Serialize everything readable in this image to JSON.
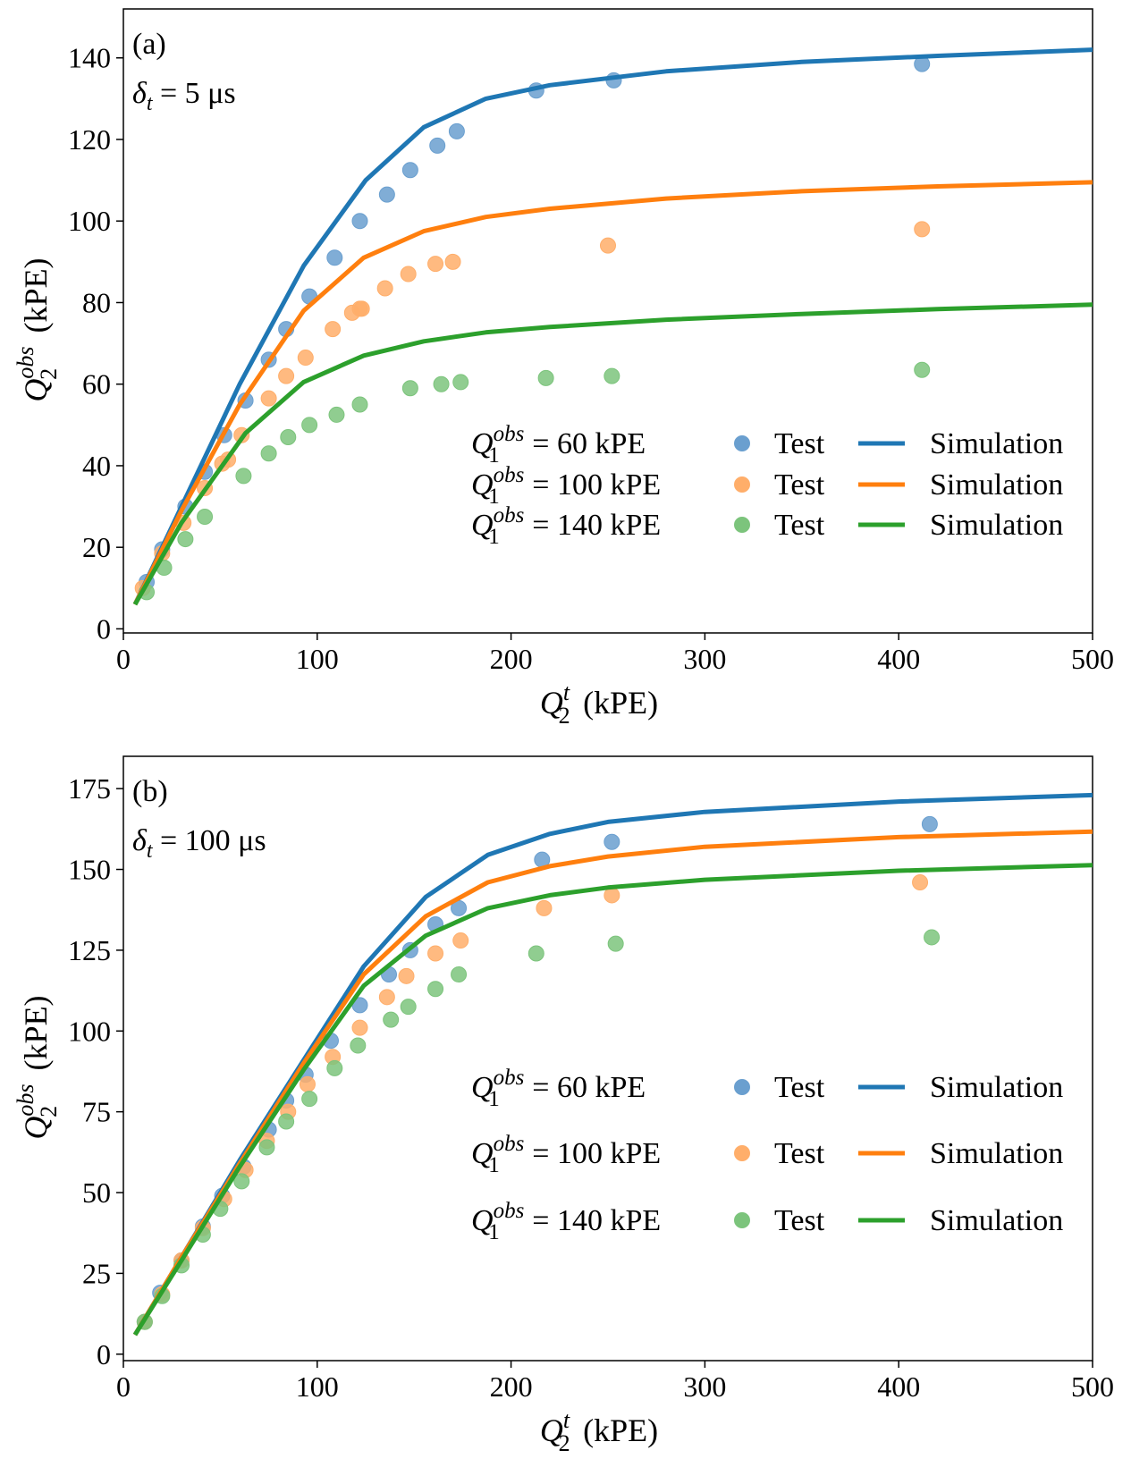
{
  "figure": {
    "colors": {
      "blue": "#1f77b4",
      "orange": "#ff7f0e",
      "green": "#2ca02c",
      "blue_marker": "#6a9fcf",
      "orange_marker": "#ffae6a",
      "green_marker": "#7cc47c"
    }
  },
  "chart_data": [
    {
      "type": "line",
      "panel_label": "(a)",
      "annotation": {
        "symbol": "δ",
        "sub": "t",
        "text": " = 5 μs"
      },
      "xlabel": {
        "base": "Q",
        "sub": "2",
        "sup": "t",
        "unit": " (kPE)"
      },
      "ylabel": {
        "base": "Q",
        "sub": "2",
        "sup": "obs",
        "unit": " (kPE)"
      },
      "xlim": [
        0,
        500
      ],
      "ylim": [
        -1,
        152
      ],
      "xticks": [
        0,
        100,
        200,
        300,
        400,
        500
      ],
      "yticks": [
        0,
        20,
        40,
        60,
        80,
        100,
        120,
        140
      ],
      "grid": false,
      "legend_position": "lower-right",
      "series": [
        {
          "color_key": "blue",
          "legend": {
            "q_base": "Q",
            "q_sub": "1",
            "q_sup": "obs",
            "value": " =  60  kPE",
            "test": "Test",
            "sim": "Simulation"
          },
          "simulation": [
            [
              6,
              6
            ],
            [
              30,
              30
            ],
            [
              60,
              60
            ],
            [
              93,
              89
            ],
            [
              125,
              110
            ],
            [
              155,
              123
            ],
            [
              187,
              130
            ],
            [
              220,
              133.3
            ],
            [
              280,
              136.7
            ],
            [
              350,
              139
            ],
            [
              420,
              140.5
            ],
            [
              500,
              142
            ]
          ],
          "test": [
            [
              12,
              11.5
            ],
            [
              20,
              19.5
            ],
            [
              32,
              30
            ],
            [
              42,
              38.5
            ],
            [
              52,
              47.5
            ],
            [
              63,
              56
            ],
            [
              75,
              66
            ],
            [
              84,
              73.5
            ],
            [
              96,
              81.5
            ],
            [
              109,
              91
            ],
            [
              122,
              100
            ],
            [
              136,
              106.5
            ],
            [
              148,
              112.5
            ],
            [
              162,
              118.5
            ],
            [
              172,
              122
            ],
            [
              213,
              132
            ],
            [
              253,
              134.5
            ],
            [
              412,
              138.5
            ]
          ]
        },
        {
          "color_key": "orange",
          "legend": {
            "q_base": "Q",
            "q_sub": "1",
            "q_sup": "obs",
            "value": " = 100 kPE",
            "test": "Test",
            "sim": "Simulation"
          },
          "simulation": [
            [
              6,
              6
            ],
            [
              30,
              29
            ],
            [
              60,
              55
            ],
            [
              93,
              78
            ],
            [
              124,
              91
            ],
            [
              155,
              97.5
            ],
            [
              187,
              101
            ],
            [
              220,
              103
            ],
            [
              280,
              105.5
            ],
            [
              350,
              107.3
            ],
            [
              420,
              108.5
            ],
            [
              500,
              109.5
            ]
          ],
          "test": [
            [
              10,
              10
            ],
            [
              20,
              18.5
            ],
            [
              31,
              26
            ],
            [
              42,
              34.5
            ],
            [
              51,
              40.5
            ],
            [
              54,
              41.5
            ],
            [
              61,
              47.5
            ],
            [
              75,
              56.5
            ],
            [
              84,
              62
            ],
            [
              94,
              66.5
            ],
            [
              108,
              73.5
            ],
            [
              118,
              77.5
            ],
            [
              122,
              78.5
            ],
            [
              123,
              78.5
            ],
            [
              135,
              83.5
            ],
            [
              147,
              87
            ],
            [
              161,
              89.5
            ],
            [
              170,
              90
            ],
            [
              250,
              94
            ],
            [
              412,
              98
            ]
          ]
        },
        {
          "color_key": "green",
          "legend": {
            "q_base": "Q",
            "q_sub": "1",
            "q_sup": "obs",
            "value": " = 140 kPE",
            "test": "Test",
            "sim": "Simulation"
          },
          "simulation": [
            [
              6,
              6
            ],
            [
              30,
              26
            ],
            [
              63,
              48
            ],
            [
              93,
              60.5
            ],
            [
              124,
              67
            ],
            [
              155,
              70.5
            ],
            [
              187,
              72.7
            ],
            [
              220,
              74
            ],
            [
              280,
              75.8
            ],
            [
              350,
              77.2
            ],
            [
              420,
              78.4
            ],
            [
              500,
              79.5
            ]
          ],
          "test": [
            [
              12,
              9
            ],
            [
              21,
              15
            ],
            [
              32,
              22
            ],
            [
              42,
              27.5
            ],
            [
              62,
              37.5
            ],
            [
              75,
              43
            ],
            [
              85,
              47
            ],
            [
              96,
              50
            ],
            [
              110,
              52.5
            ],
            [
              122,
              55
            ],
            [
              148,
              59
            ],
            [
              164,
              60
            ],
            [
              174,
              60.5
            ],
            [
              218,
              61.5
            ],
            [
              252,
              62
            ],
            [
              412,
              63.5
            ]
          ]
        }
      ]
    },
    {
      "type": "line",
      "panel_label": "(b)",
      "annotation": {
        "symbol": "δ",
        "sub": "t",
        "text": " = 100 μs"
      },
      "xlabel": {
        "base": "Q",
        "sub": "2",
        "sup": "t",
        "unit": " (kPE)"
      },
      "ylabel": {
        "base": "Q",
        "sub": "2",
        "sup": "obs",
        "unit": " (kPE)"
      },
      "xlim": [
        0,
        500
      ],
      "ylim": [
        -2,
        185
      ],
      "xticks": [
        0,
        100,
        200,
        300,
        400,
        500
      ],
      "yticks": [
        0,
        25,
        50,
        75,
        100,
        125,
        150,
        175
      ],
      "grid": false,
      "legend_position": "lower-right",
      "series": [
        {
          "color_key": "blue",
          "legend": {
            "q_base": "Q",
            "q_sub": "1",
            "q_sup": "obs",
            "value": " =  60  kPE",
            "test": "Test",
            "sim": "Simulation"
          },
          "simulation": [
            [
              6,
              6
            ],
            [
              30,
              30
            ],
            [
              60,
              60
            ],
            [
              93,
              91
            ],
            [
              124,
              120
            ],
            [
              156,
              141.5
            ],
            [
              188,
              154.5
            ],
            [
              220,
              161
            ],
            [
              250,
              164.7
            ],
            [
              300,
              167.8
            ],
            [
              400,
              171
            ],
            [
              500,
              173
            ]
          ],
          "test": [
            [
              11,
              10
            ],
            [
              19,
              19
            ],
            [
              30,
              29
            ],
            [
              41,
              39.5
            ],
            [
              51,
              49
            ],
            [
              62,
              58
            ],
            [
              75,
              69.5
            ],
            [
              84,
              78.5
            ],
            [
              94,
              86.5
            ],
            [
              107,
              97
            ],
            [
              122,
              108
            ],
            [
              137,
              117.5
            ],
            [
              148,
              125
            ],
            [
              161,
              133
            ],
            [
              173,
              138
            ],
            [
              216,
              153
            ],
            [
              252,
              158.5
            ],
            [
              416,
              164
            ]
          ]
        },
        {
          "color_key": "orange",
          "legend": {
            "q_base": "Q",
            "q_sub": "1",
            "q_sup": "obs",
            "value": " = 100 kPE",
            "test": "Test",
            "sim": "Simulation"
          },
          "simulation": [
            [
              6,
              6
            ],
            [
              30,
              30
            ],
            [
              60,
              59
            ],
            [
              93,
              90
            ],
            [
              124,
              117.5
            ],
            [
              156,
              135.5
            ],
            [
              188,
              146
            ],
            [
              220,
              151
            ],
            [
              250,
              154
            ],
            [
              300,
              157
            ],
            [
              400,
              160
            ],
            [
              500,
              161.7
            ]
          ],
          "test": [
            [
              11,
              10
            ],
            [
              20,
              18.5
            ],
            [
              30,
              29
            ],
            [
              41,
              39
            ],
            [
              52,
              48
            ],
            [
              63,
              57
            ],
            [
              74,
              66
            ],
            [
              85,
              75
            ],
            [
              95,
              83.5
            ],
            [
              108,
              92
            ],
            [
              122,
              101
            ],
            [
              136,
              110.5
            ],
            [
              146,
              117
            ],
            [
              161,
              124
            ],
            [
              174,
              128
            ],
            [
              217,
              138
            ],
            [
              252,
              142
            ],
            [
              411,
              146
            ]
          ]
        },
        {
          "color_key": "green",
          "legend": {
            "q_base": "Q",
            "q_sub": "1",
            "q_sup": "obs",
            "value": " = 140 kPE",
            "test": "Test",
            "sim": "Simulation"
          },
          "simulation": [
            [
              6,
              6
            ],
            [
              30,
              29
            ],
            [
              60,
              58
            ],
            [
              93,
              88
            ],
            [
              124,
              114
            ],
            [
              156,
              129.5
            ],
            [
              188,
              138
            ],
            [
              220,
              142
            ],
            [
              250,
              144.4
            ],
            [
              300,
              146.8
            ],
            [
              400,
              149.6
            ],
            [
              500,
              151.3
            ]
          ],
          "test": [
            [
              11,
              10
            ],
            [
              20,
              18
            ],
            [
              30,
              27.5
            ],
            [
              41,
              37
            ],
            [
              50,
              45
            ],
            [
              61,
              53.5
            ],
            [
              74,
              64
            ],
            [
              84,
              72
            ],
            [
              96,
              79
            ],
            [
              109,
              88.5
            ],
            [
              121,
              95.5
            ],
            [
              138,
              103.5
            ],
            [
              147,
              107.5
            ],
            [
              161,
              113
            ],
            [
              173,
              117.5
            ],
            [
              213,
              124
            ],
            [
              254,
              127
            ],
            [
              417,
              129
            ]
          ]
        }
      ]
    }
  ]
}
